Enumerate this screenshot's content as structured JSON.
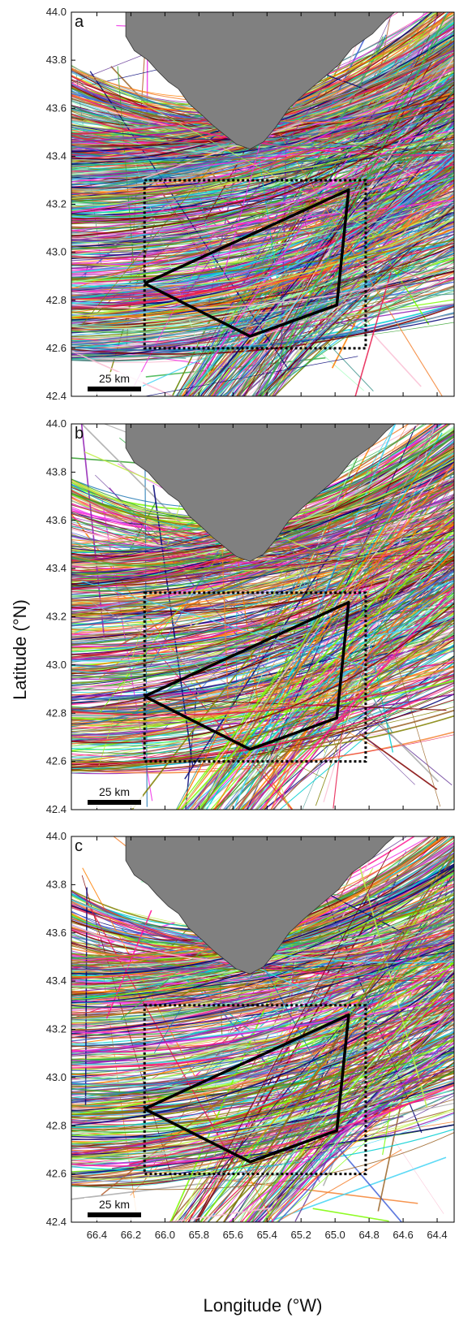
{
  "chart_data": [
    {
      "panel": "a",
      "type": "line",
      "xlabel": "",
      "ylabel": "",
      "xlim": [
        66.55,
        64.3
      ],
      "ylim": [
        42.4,
        44.0
      ],
      "y_ticks": [
        "42.4",
        "42.6",
        "42.8",
        "43.0",
        "43.2",
        "43.4",
        "43.6",
        "43.8",
        "44.0"
      ],
      "x_ticks": [],
      "study_area_polygon": {
        "lon": [
          66.12,
          65.5,
          64.99,
          64.92,
          66.12
        ],
        "lat": [
          42.87,
          42.65,
          42.78,
          43.26,
          42.87
        ]
      },
      "dotted_box": {
        "lon": [
          66.12,
          64.82
        ],
        "lat": [
          42.6,
          43.3
        ]
      },
      "scale_bar": "25 km",
      "track_density": "very dense",
      "land_color": "#808080"
    },
    {
      "panel": "b",
      "type": "line",
      "xlabel": "",
      "ylabel": "Latitude (°N)",
      "xlim": [
        66.55,
        64.3
      ],
      "ylim": [
        42.4,
        44.0
      ],
      "y_ticks": [
        "42.4",
        "42.6",
        "42.8",
        "43.0",
        "43.2",
        "43.4",
        "43.6",
        "43.8",
        "44.0"
      ],
      "x_ticks": [],
      "study_area_polygon": {
        "lon": [
          66.12,
          65.5,
          64.99,
          64.92,
          66.12
        ],
        "lat": [
          42.87,
          42.65,
          42.78,
          43.26,
          42.87
        ]
      },
      "dotted_box": {
        "lon": [
          66.12,
          64.82
        ],
        "lat": [
          42.6,
          43.3
        ]
      },
      "scale_bar": "25 km",
      "track_density": "dense",
      "land_color": "#808080"
    },
    {
      "panel": "c",
      "type": "line",
      "xlabel": "Longitude (°W)",
      "ylabel": "",
      "xlim": [
        66.55,
        64.3
      ],
      "ylim": [
        42.4,
        44.0
      ],
      "y_ticks": [
        "42.4",
        "42.6",
        "42.8",
        "43.0",
        "43.2",
        "43.4",
        "43.6",
        "43.8",
        "44.0"
      ],
      "x_ticks": [
        "66.4",
        "66.2",
        "66.0",
        "65.8",
        "65.6",
        "65.4",
        "65.2",
        "65.0",
        "64.8",
        "64.6",
        "64.4"
      ],
      "study_area_polygon": {
        "lon": [
          66.12,
          65.5,
          64.99,
          64.92,
          66.12
        ],
        "lat": [
          42.87,
          42.65,
          42.78,
          43.26,
          42.87
        ]
      },
      "dotted_box": {
        "lon": [
          66.12,
          64.82
        ],
        "lat": [
          42.6,
          43.3
        ]
      },
      "scale_bar": "25 km",
      "track_density": "dense",
      "land_color": "#808080"
    }
  ],
  "palette": [
    "#e6194b",
    "#3cb44b",
    "#4363d8",
    "#f58231",
    "#911eb4",
    "#42d4f4",
    "#f032e6",
    "#bfef45",
    "#fabed4",
    "#469990",
    "#9a6324",
    "#800000",
    "#aaffc3",
    "#808000",
    "#000075",
    "#a9a9a9",
    "#ff7f00",
    "#1f78b4",
    "#33a02c",
    "#6a3d9a",
    "#b15928",
    "#00ced1",
    "#ff1493",
    "#7cfc00"
  ]
}
